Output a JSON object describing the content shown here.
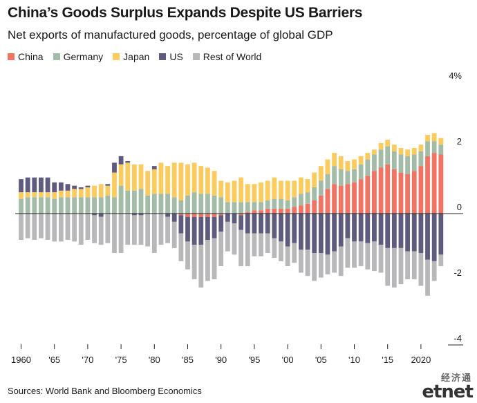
{
  "title": "China’s Goods Surplus Expands Despite US Barriers",
  "subtitle": "Net exports of manufactured goods, percentage of global GDP",
  "source": "Sources: World Bank and Bloomberg Economics",
  "brand": {
    "cn": "经济通",
    "e": "et",
    "net": "net"
  },
  "colors": {
    "China": "#f27362",
    "Germany": "#a3bca8",
    "Japan": "#fbcb5e",
    "US": "#5e5b7e",
    "Rest of World": "#b8b8ba"
  },
  "chart_data": {
    "type": "bar",
    "stacked": true,
    "title": "China’s Goods Surplus Expands Despite US Barriers",
    "subtitle": "Net exports of manufactured goods, percentage of global GDP",
    "ylim": [
      -4,
      4
    ],
    "y_ticks": [
      4,
      2,
      0,
      -2,
      -4
    ],
    "y_tick_labels": [
      "4%",
      "2",
      "0",
      "-2",
      "-4"
    ],
    "x_tick_years": [
      1960,
      1965,
      1970,
      1975,
      1980,
      1985,
      1990,
      1995,
      2000,
      2005,
      2010,
      2015,
      2020
    ],
    "x_tick_labels": [
      "1960",
      "'65",
      "'70",
      "'75",
      "'80",
      "'85",
      "'90",
      "'95",
      "'00",
      "'05",
      "'10",
      "'15",
      "2020"
    ],
    "legend": [
      "China",
      "Germany",
      "Japan",
      "US",
      "Rest of World"
    ],
    "legend_position": "top-left",
    "categories": [
      1960,
      1961,
      1962,
      1963,
      1964,
      1965,
      1966,
      1967,
      1968,
      1969,
      1970,
      1971,
      1972,
      1973,
      1974,
      1975,
      1976,
      1977,
      1978,
      1979,
      1980,
      1981,
      1982,
      1983,
      1984,
      1985,
      1986,
      1987,
      1988,
      1989,
      1990,
      1991,
      1992,
      1993,
      1994,
      1995,
      1996,
      1997,
      1998,
      1999,
      2000,
      2001,
      2002,
      2003,
      2004,
      2005,
      2006,
      2007,
      2008,
      2009,
      2010,
      2011,
      2012,
      2013,
      2014,
      2015,
      2016,
      2017,
      2018,
      2019,
      2020,
      2021,
      2022,
      2023
    ],
    "series": [
      {
        "name": "China",
        "values": [
          0,
          0,
          0,
          0,
          0,
          0,
          0,
          0,
          0,
          0,
          0,
          0,
          0,
          0,
          0,
          0,
          0,
          0,
          0,
          0,
          0,
          0,
          0,
          0,
          -0.05,
          -0.1,
          -0.1,
          -0.1,
          -0.1,
          -0.1,
          -0.05,
          0,
          0,
          -0.05,
          0.05,
          0.1,
          0.1,
          0.15,
          0.15,
          0.15,
          0.15,
          0.2,
          0.25,
          0.3,
          0.4,
          0.55,
          0.75,
          0.9,
          0.85,
          0.9,
          0.95,
          1.05,
          1.15,
          1.3,
          1.4,
          1.5,
          1.35,
          1.25,
          1.2,
          1.3,
          1.45,
          1.75,
          1.85,
          1.8
        ]
      },
      {
        "name": "Germany",
        "values": [
          0.45,
          0.5,
          0.5,
          0.5,
          0.5,
          0.45,
          0.5,
          0.5,
          0.5,
          0.5,
          0.5,
          0.5,
          0.5,
          0.55,
          0.5,
          0.85,
          0.7,
          0.7,
          0.75,
          0.55,
          0.6,
          0.6,
          0.6,
          0.5,
          0.4,
          0.55,
          0.65,
          0.6,
          0.6,
          0.55,
          0.5,
          0.35,
          0.35,
          0.35,
          0.3,
          0.25,
          0.25,
          0.25,
          0.3,
          0.3,
          0.25,
          0.3,
          0.35,
          0.35,
          0.4,
          0.45,
          0.45,
          0.55,
          0.5,
          0.4,
          0.4,
          0.45,
          0.5,
          0.5,
          0.55,
          0.55,
          0.55,
          0.55,
          0.55,
          0.5,
          0.45,
          0.45,
          0.35,
          0.3
        ]
      },
      {
        "name": "Japan",
        "values": [
          0.2,
          0.15,
          0.15,
          0.15,
          0.15,
          0.2,
          0.2,
          0.2,
          0.25,
          0.25,
          0.3,
          0.35,
          0.4,
          0.3,
          0.75,
          0.65,
          0.85,
          0.8,
          0.75,
          0.75,
          0.75,
          0.95,
          0.85,
          1.05,
          1.15,
          0.95,
          0.9,
          0.85,
          0.8,
          0.75,
          0.5,
          0.6,
          0.65,
          0.75,
          0.55,
          0.55,
          0.6,
          0.6,
          0.65,
          0.55,
          0.6,
          0.5,
          0.5,
          0.4,
          0.45,
          0.45,
          0.45,
          0.4,
          0.4,
          0.3,
          0.3,
          0.25,
          0.2,
          0.15,
          0.2,
          0.2,
          0.2,
          0.2,
          0.2,
          0.2,
          0.2,
          0.2,
          0.25,
          0.2
        ]
      },
      {
        "name": "US",
        "values": [
          0.4,
          0.45,
          0.45,
          0.45,
          0.45,
          0.3,
          0.25,
          0.2,
          0.1,
          0.05,
          0.05,
          -0.05,
          -0.1,
          0.05,
          0.3,
          0.25,
          0.05,
          -0.05,
          -0.05,
          0,
          0.1,
          0,
          -0.1,
          -0.25,
          -0.55,
          -0.75,
          -0.85,
          -0.85,
          -0.7,
          -0.65,
          -0.5,
          -0.25,
          -0.3,
          -0.45,
          -0.6,
          -0.6,
          -0.6,
          -0.6,
          -0.75,
          -0.85,
          -1.0,
          -0.9,
          -1.1,
          -1.1,
          -1.2,
          -1.2,
          -1.25,
          -1.15,
          -1.0,
          -0.75,
          -0.85,
          -0.85,
          -0.9,
          -0.85,
          -0.95,
          -1.05,
          -1.05,
          -1.05,
          -1.15,
          -1.15,
          -1.2,
          -1.4,
          -1.45,
          -1.25
        ]
      },
      {
        "name": "Rest of World",
        "values": [
          -0.8,
          -0.75,
          -0.8,
          -0.75,
          -0.8,
          -0.85,
          -0.85,
          -0.8,
          -0.85,
          -0.95,
          -0.8,
          -0.85,
          -0.85,
          -0.9,
          -1.2,
          -1.2,
          -0.95,
          -0.9,
          -0.9,
          -1.0,
          -1.2,
          -0.95,
          -0.8,
          -0.8,
          -0.85,
          -0.85,
          -1.05,
          -1.3,
          -1.25,
          -1.25,
          -1.05,
          -0.9,
          -0.95,
          -1.1,
          -1.0,
          -0.7,
          -0.7,
          -0.6,
          -0.6,
          -0.6,
          -0.6,
          -0.6,
          -0.7,
          -0.8,
          -0.85,
          -0.75,
          -0.6,
          -0.65,
          -0.9,
          -0.9,
          -0.8,
          -0.75,
          -0.8,
          -0.9,
          -0.85,
          -1.15,
          -1.2,
          -1.1,
          -0.85,
          -0.85,
          -1.0,
          -1.1,
          -0.6,
          -0.35
        ]
      }
    ]
  }
}
